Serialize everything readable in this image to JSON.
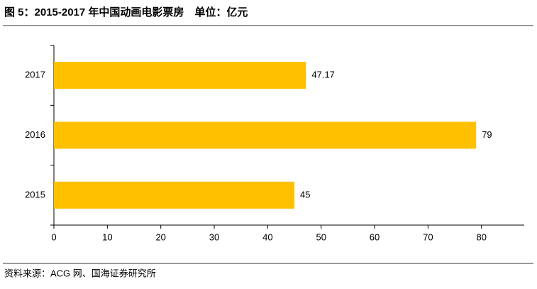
{
  "chart_data": {
    "type": "hbar",
    "title": "图 5：2015-2017 年中国动画电影票房　单位：亿元",
    "source": "资料来源：ACG 网、国海证券研究所",
    "categories": [
      "2017",
      "2016",
      "2015"
    ],
    "values": [
      47.17,
      79,
      45
    ],
    "color": "#ffc000",
    "xlim": [
      0,
      88
    ],
    "xticks": [
      0,
      10,
      20,
      30,
      40,
      50,
      60,
      70,
      80
    ],
    "grid": false
  }
}
